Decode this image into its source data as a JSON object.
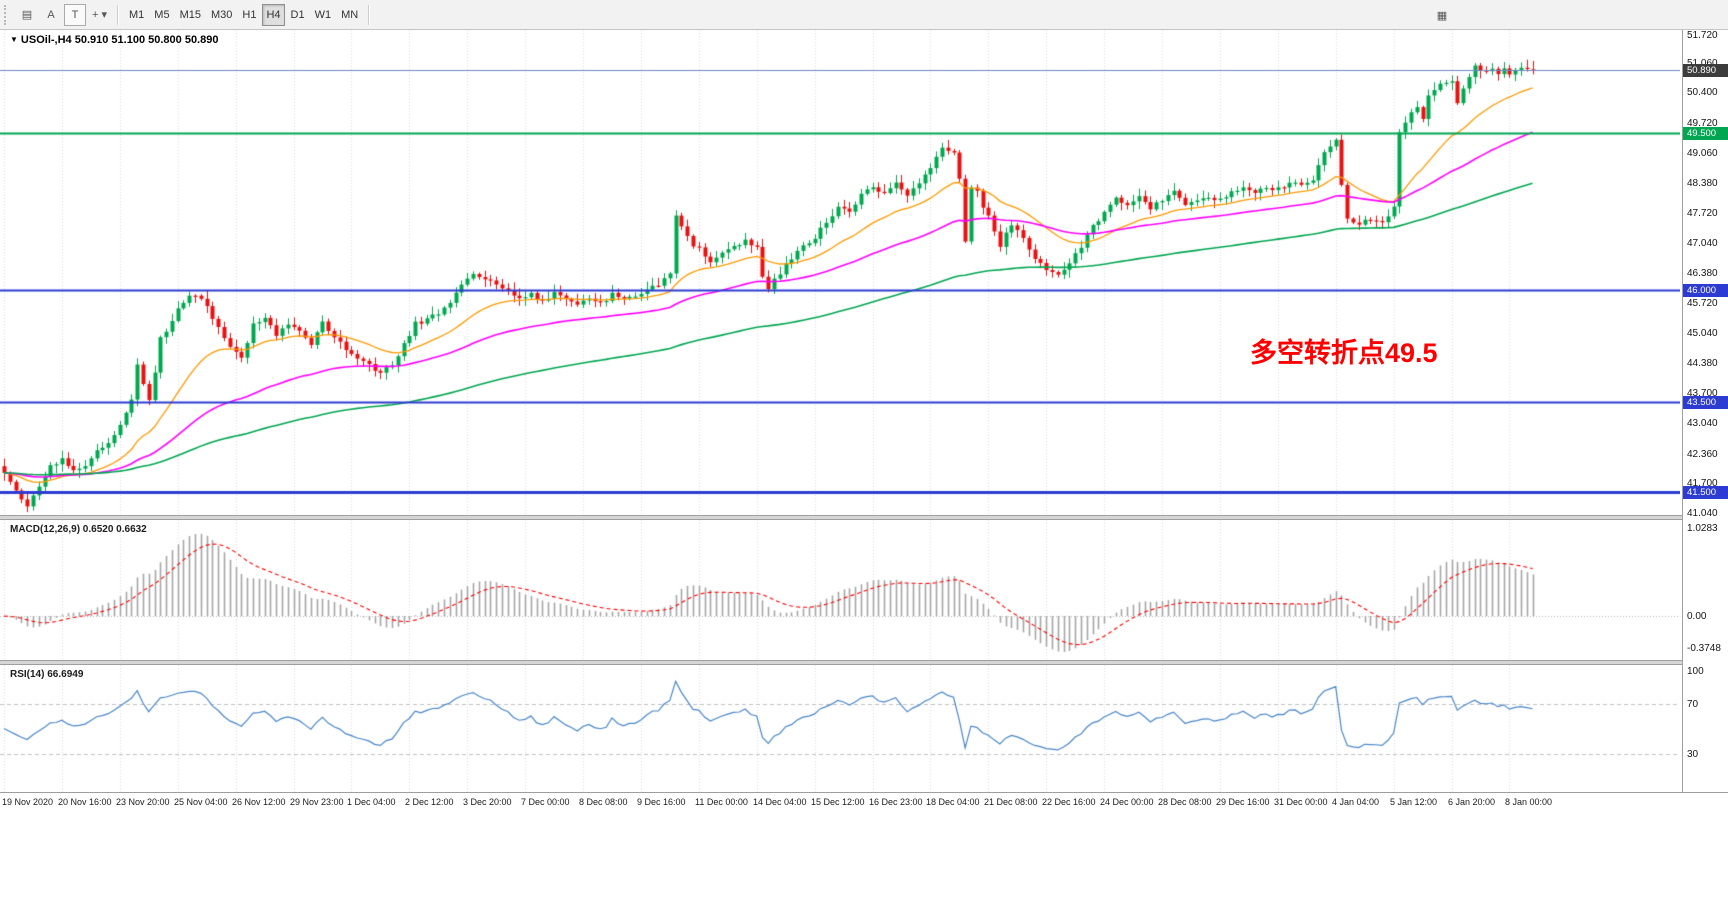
{
  "toolbar": {
    "left_icons": [
      {
        "name": "chart-window-icon",
        "glyph": "▤"
      },
      {
        "name": "text-label-a-button",
        "glyph": "A"
      },
      {
        "name": "text-tool-button",
        "glyph": "T"
      },
      {
        "name": "draw-tools-dropdown",
        "glyph": "+ ▾"
      }
    ],
    "right_icon": {
      "name": "panel-toggle-icon",
      "glyph": "▦"
    },
    "timeframes": [
      "M1",
      "M5",
      "M15",
      "M30",
      "H1",
      "H4",
      "D1",
      "W1",
      "MN"
    ],
    "active_timeframe": "H4"
  },
  "chart": {
    "title_marker": "▼",
    "symbol_title": "USOil-,H4",
    "ohlc_text": "50.910 51.100 50.800 50.890",
    "annotation": {
      "text": "多空转折点49.5",
      "color": "#ff0000"
    },
    "colors": {
      "up": "#00a84f",
      "down": "#e81212",
      "grid": "#dcdcdc"
    }
  },
  "price_axis": {
    "ticks": [
      "51.720",
      "51.060",
      "50.400",
      "49.720",
      "49.060",
      "48.380",
      "47.720",
      "47.040",
      "46.380",
      "45.720",
      "45.040",
      "44.380",
      "43.700",
      "43.040",
      "42.360",
      "41.700",
      "41.040"
    ],
    "tags": [
      {
        "text": "50.890",
        "price": 50.89,
        "bg": "#3c3c3c"
      },
      {
        "text": "49.500",
        "price": 49.5,
        "bg": "#00a651"
      },
      {
        "text": "46.000",
        "price": 46.0,
        "bg": "#2c3bd2"
      },
      {
        "text": "43.500",
        "price": 43.5,
        "bg": "#2c3bd2"
      },
      {
        "text": "41.500",
        "price": 41.5,
        "bg": "#2c3bd2"
      }
    ]
  },
  "macd_panel": {
    "label": "MACD(12,26,9) 0.6520 0.6632",
    "axis_ticks": [
      "1.0283",
      "0.00",
      "-0.3748"
    ],
    "histogram_color": "#a6a6a6",
    "signal_color": "#ff0000"
  },
  "rsi_panel": {
    "label": "RSI(14) 66.6949",
    "axis_ticks": [
      "100",
      "70",
      "30"
    ],
    "line_color": "#4a86c8",
    "level_color": "#c0c0c0"
  },
  "chart_data": {
    "type": "candlestick",
    "symbol": "USOil",
    "timeframe": "H4",
    "bars_total": 265,
    "last_bar_ohlc": {
      "open": 50.91,
      "high": 51.1,
      "low": 50.8,
      "close": 50.89
    },
    "y_axis": {
      "min": 41.04,
      "max": 51.72
    },
    "x_axis": {
      "bars_per_label": 10,
      "labels": [
        "19 Nov 2020",
        "20 Nov 16:00",
        "23 Nov 20:00",
        "25 Nov 04:00",
        "26 Nov 12:00",
        "29 Nov 23:00",
        "1 Dec 04:00",
        "2 Dec 12:00",
        "3 Dec 20:00",
        "7 Dec 00:00",
        "8 Dec 08:00",
        "9 Dec 16:00",
        "11 Dec 00:00",
        "14 Dec 04:00",
        "15 Dec 12:00",
        "16 Dec 23:00",
        "18 Dec 04:00",
        "21 Dec 08:00",
        "22 Dec 16:00",
        "24 Dec 00:00",
        "28 Dec 08:00",
        "29 Dec 16:00",
        "31 Dec 00:00",
        "4 Jan 04:00",
        "5 Jan 12:00",
        "6 Jan 20:00",
        "8 Jan 00:00"
      ]
    },
    "close_waypoints": [
      [
        0,
        41.9
      ],
      [
        2,
        41.5
      ],
      [
        4,
        41.15
      ],
      [
        6,
        41.65
      ],
      [
        8,
        42.1
      ],
      [
        10,
        42.2
      ],
      [
        12,
        41.95
      ],
      [
        14,
        42.1
      ],
      [
        16,
        42.45
      ],
      [
        18,
        42.6
      ],
      [
        20,
        42.95
      ],
      [
        22,
        43.6
      ],
      [
        23,
        44.4
      ],
      [
        25,
        43.5
      ],
      [
        27,
        44.9
      ],
      [
        29,
        45.35
      ],
      [
        31,
        45.75
      ],
      [
        33,
        45.9
      ],
      [
        35,
        45.6
      ],
      [
        37,
        45.2
      ],
      [
        39,
        44.75
      ],
      [
        41,
        44.45
      ],
      [
        43,
        45.2
      ],
      [
        45,
        45.4
      ],
      [
        47,
        45.0
      ],
      [
        49,
        45.2
      ],
      [
        51,
        45.05
      ],
      [
        53,
        44.8
      ],
      [
        55,
        45.3
      ],
      [
        57,
        45.0
      ],
      [
        59,
        44.7
      ],
      [
        61,
        44.5
      ],
      [
        63,
        44.3
      ],
      [
        65,
        44.2
      ],
      [
        67,
        44.35
      ],
      [
        69,
        44.8
      ],
      [
        71,
        45.25
      ],
      [
        73,
        45.35
      ],
      [
        75,
        45.45
      ],
      [
        77,
        45.7
      ],
      [
        79,
        46.1
      ],
      [
        81,
        46.3
      ],
      [
        83,
        46.25
      ],
      [
        85,
        46.1
      ],
      [
        87,
        45.95
      ],
      [
        89,
        45.8
      ],
      [
        91,
        45.9
      ],
      [
        93,
        45.75
      ],
      [
        95,
        45.9
      ],
      [
        97,
        45.8
      ],
      [
        99,
        45.72
      ],
      [
        101,
        45.85
      ],
      [
        103,
        45.7
      ],
      [
        105,
        45.9
      ],
      [
        107,
        45.8
      ],
      [
        109,
        45.9
      ],
      [
        111,
        46.0
      ],
      [
        113,
        46.15
      ],
      [
        115,
        46.35
      ],
      [
        116,
        47.6
      ],
      [
        118,
        47.15
      ],
      [
        120,
        46.9
      ],
      [
        122,
        46.6
      ],
      [
        124,
        46.8
      ],
      [
        126,
        47.0
      ],
      [
        128,
        47.1
      ],
      [
        130,
        47.0
      ],
      [
        131,
        46.3
      ],
      [
        132,
        46.0
      ],
      [
        134,
        46.4
      ],
      [
        136,
        46.7
      ],
      [
        138,
        46.95
      ],
      [
        140,
        47.2
      ],
      [
        142,
        47.5
      ],
      [
        144,
        47.85
      ],
      [
        146,
        47.7
      ],
      [
        148,
        48.1
      ],
      [
        150,
        48.3
      ],
      [
        152,
        48.1
      ],
      [
        154,
        48.35
      ],
      [
        156,
        48.05
      ],
      [
        158,
        48.4
      ],
      [
        160,
        48.75
      ],
      [
        162,
        49.2
      ],
      [
        164,
        49.0
      ],
      [
        165,
        48.5
      ],
      [
        166,
        47.05
      ],
      [
        167,
        48.3
      ],
      [
        168,
        48.15
      ],
      [
        170,
        47.6
      ],
      [
        172,
        47.0
      ],
      [
        174,
        47.45
      ],
      [
        176,
        47.15
      ],
      [
        178,
        46.7
      ],
      [
        180,
        46.5
      ],
      [
        182,
        46.35
      ],
      [
        184,
        46.6
      ],
      [
        186,
        47.0
      ],
      [
        188,
        47.45
      ],
      [
        190,
        47.7
      ],
      [
        192,
        48.0
      ],
      [
        194,
        47.9
      ],
      [
        196,
        48.05
      ],
      [
        198,
        47.85
      ],
      [
        200,
        47.95
      ],
      [
        202,
        48.25
      ],
      [
        204,
        47.9
      ],
      [
        206,
        48.0
      ],
      [
        208,
        48.1
      ],
      [
        210,
        48.0
      ],
      [
        212,
        48.2
      ],
      [
        214,
        48.3
      ],
      [
        216,
        48.2
      ],
      [
        218,
        48.3
      ],
      [
        220,
        48.25
      ],
      [
        222,
        48.4
      ],
      [
        224,
        48.3
      ],
      [
        226,
        48.45
      ],
      [
        228,
        49.05
      ],
      [
        230,
        49.35
      ],
      [
        231,
        48.4
      ],
      [
        232,
        47.6
      ],
      [
        234,
        47.45
      ],
      [
        236,
        47.6
      ],
      [
        238,
        47.5
      ],
      [
        240,
        47.8
      ],
      [
        241,
        49.55
      ],
      [
        242,
        49.75
      ],
      [
        243,
        49.9
      ],
      [
        244,
        50.1
      ],
      [
        245,
        49.85
      ],
      [
        246,
        50.3
      ],
      [
        248,
        50.55
      ],
      [
        250,
        50.6
      ],
      [
        251,
        50.15
      ],
      [
        252,
        50.5
      ],
      [
        253,
        50.8
      ],
      [
        254,
        51.0
      ],
      [
        255,
        50.9
      ],
      [
        256,
        50.85
      ],
      [
        257,
        50.95
      ],
      [
        258,
        50.8
      ],
      [
        259,
        50.9
      ],
      [
        260,
        50.85
      ],
      [
        262,
        50.95
      ],
      [
        264,
        50.89
      ]
    ],
    "moving_averages": [
      {
        "color": "#ff9900",
        "estimated_period": 20
      },
      {
        "color": "#ff00ff",
        "estimated_period": 55
      },
      {
        "color": "#00a651",
        "estimated_period": 130
      }
    ],
    "horizontal_lines": [
      {
        "price": 50.89,
        "color": "#6b86c8",
        "width": 1,
        "role": "current-price-line"
      },
      {
        "price": 49.5,
        "color": "#00a651",
        "width": 2,
        "role": "pivot-line"
      },
      {
        "price": 46.0,
        "color": "#2c3bd2",
        "width": 2,
        "role": "support-line"
      },
      {
        "price": 43.5,
        "color": "#2c3bd2",
        "width": 2,
        "role": "support-line"
      },
      {
        "price": 41.5,
        "color": "#2c3bd2",
        "width": 3,
        "role": "support-line"
      }
    ],
    "indicators": [
      {
        "name": "MACD",
        "params": [
          12,
          26,
          9
        ],
        "last_main": 0.652,
        "last_signal": 0.6632,
        "axis_values": [
          1.0283,
          0,
          -0.3748
        ]
      },
      {
        "name": "RSI",
        "params": [
          14
        ],
        "last_value": 66.6949,
        "levels": [
          70,
          30
        ],
        "axis_values": [
          100,
          70,
          30
        ]
      }
    ]
  }
}
